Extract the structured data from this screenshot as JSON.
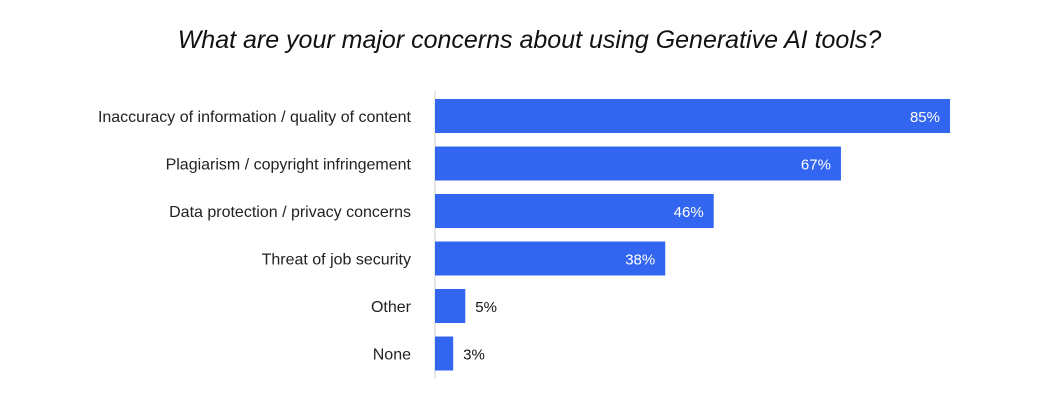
{
  "chart_data": {
    "type": "bar",
    "orientation": "horizontal",
    "title": "What are your major concerns about using Generative AI tools?",
    "categories": [
      "Inaccuracy of information / quality of content",
      "Plagiarism / copyright infringement",
      "Data protection / privacy concerns",
      "Threat of job security",
      "Other",
      "None"
    ],
    "values": [
      85,
      67,
      46,
      38,
      5,
      3
    ],
    "value_labels": [
      "85%",
      "67%",
      "46%",
      "38%",
      "5%",
      "3%"
    ],
    "unit": "%",
    "xlim": [
      0,
      100
    ],
    "grid": false,
    "legend": "none",
    "bar_color": "#3366f0"
  }
}
